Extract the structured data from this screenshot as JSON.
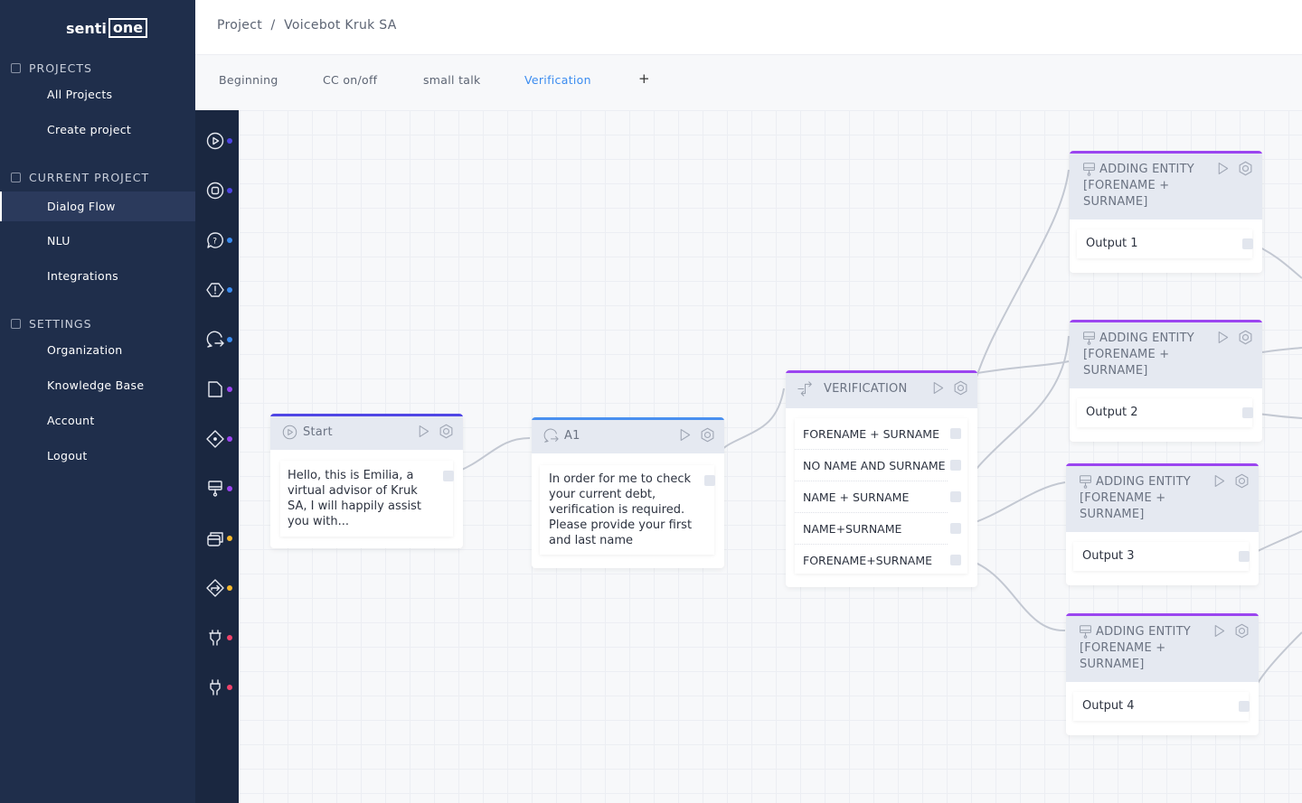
{
  "sidebar": {
    "logo": "senti one",
    "logo_left": "senti",
    "logo_right": "one",
    "sections": [
      {
        "label": "PROJECTS",
        "items": [
          "All Projects",
          "Create project"
        ]
      },
      {
        "label": "CURRENT PROJECT",
        "items": [
          "Dialog Flow",
          "NLU",
          "Integrations"
        ]
      },
      {
        "label": "SETTINGS",
        "items": [
          "Organization",
          "Knowledge Base",
          "Account",
          "Logout"
        ]
      }
    ],
    "selected": "Dialog Flow"
  },
  "breadcrumb": {
    "root": "Project",
    "separator": "/",
    "current": "Voicebot Kruk SA"
  },
  "tabs": [
    {
      "label": "Beginning"
    },
    {
      "label": "CC on/off"
    },
    {
      "label": "small talk"
    },
    {
      "label": "Verification",
      "active": true
    },
    {
      "label": "+"
    }
  ],
  "rail": [
    {
      "icon": "play-circle-icon",
      "color": "#4f46e5"
    },
    {
      "icon": "stop-circle-icon",
      "color": "#4f46e5"
    },
    {
      "icon": "question-bubble-icon",
      "color": "#3b8cf0"
    },
    {
      "icon": "alert-hexagon-icon",
      "color": "#3b8cf0"
    },
    {
      "icon": "bubble-redirect-icon",
      "color": "#3b8cf0"
    },
    {
      "icon": "document-icon",
      "color": "#9b45f0"
    },
    {
      "icon": "diamond-dot-icon",
      "color": "#9b45f0"
    },
    {
      "icon": "entity-brush-icon",
      "color": "#9b45f0"
    },
    {
      "icon": "cards-icon",
      "color": "#f5b82e"
    },
    {
      "icon": "diamond-arrow-icon",
      "color": "#f5b82e"
    },
    {
      "icon": "plug-icon",
      "color": "#f0436a"
    },
    {
      "icon": "unplug-icon",
      "color": "#f0436a"
    }
  ],
  "nodes": {
    "start": {
      "title": "Start",
      "text": "Hello, this is Emilia, a virtual advisor of Kruk SA, I will happily assist you with...",
      "color": "#4f46e5"
    },
    "a1": {
      "title": "A1",
      "text": "In order for me to check your current debt, verification is required. Please provide your first and last name",
      "color": "#4a90f0"
    },
    "verification": {
      "title": "VERIFICATION",
      "color": "#9b45f0",
      "rows": [
        "FORENAME + SURNAME",
        "NO NAME AND SURNAME",
        "NAME + SURNAME",
        "NAME+SURNAME",
        "FORENAME+SURNAME"
      ]
    },
    "entities": [
      {
        "title": "ADDING ENTITY [FORENAME + SURNAME]",
        "output": "Output 1"
      },
      {
        "title": "ADDING ENTITY [FORENAME + SURNAME]",
        "output": "Output 2"
      },
      {
        "title": "ADDING ENTITY [FORENAME + SURNAME]",
        "output": "Output 3"
      },
      {
        "title": "ADDING ENTITY [FORENAME + SURNAME]",
        "output": "Output 4"
      }
    ]
  }
}
